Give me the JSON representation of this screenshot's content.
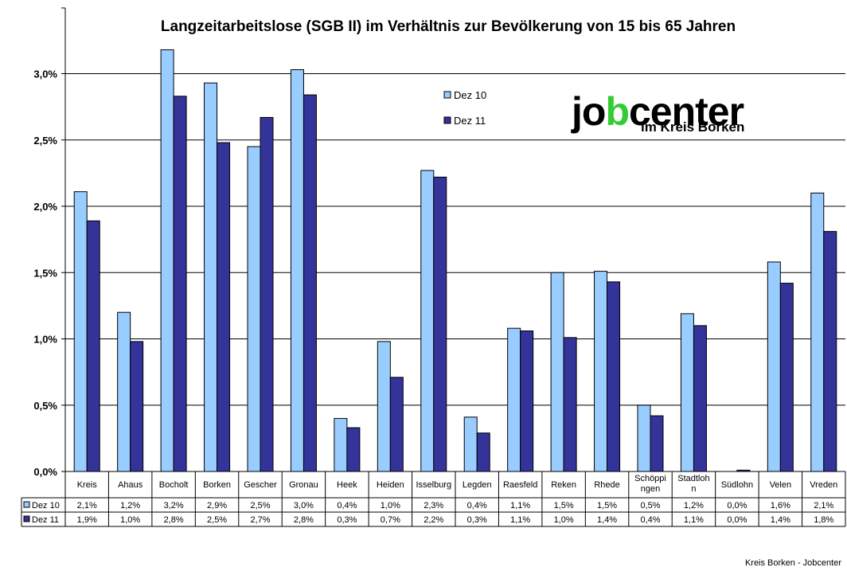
{
  "chart_data": {
    "type": "bar",
    "title": "Langzeitarbeitslose (SGB II) im Verhältnis zur Bevölkerung von 15 bis 65 Jahren",
    "categories": [
      "Kreis",
      "Ahaus",
      "Bocholt",
      "Borken",
      "Gescher",
      "Gronau",
      "Heek",
      "Heiden",
      "Isselburg",
      "Legden",
      "Raesfeld",
      "Reken",
      "Rhede",
      "Schöppingen",
      "Stadtlohn",
      "Südlohn",
      "Velen",
      "Vreden"
    ],
    "category_labels": [
      [
        "Kreis"
      ],
      [
        "Ahaus"
      ],
      [
        "Bocholt"
      ],
      [
        "Borken"
      ],
      [
        "Gescher"
      ],
      [
        "Gronau"
      ],
      [
        "Heek"
      ],
      [
        "Heiden"
      ],
      [
        "Isselburg"
      ],
      [
        "Legden"
      ],
      [
        "Raesfeld"
      ],
      [
        "Reken"
      ],
      [
        "Rhede"
      ],
      [
        "Schöppi",
        "ngen"
      ],
      [
        "Stadtloh",
        "n"
      ],
      [
        "Südlohn"
      ],
      [
        "Velen"
      ],
      [
        "Vreden"
      ]
    ],
    "series": [
      {
        "name": "Dez 10",
        "color": "#99CCFF",
        "values": [
          2.11,
          1.2,
          3.18,
          2.93,
          2.45,
          3.03,
          0.4,
          0.98,
          2.27,
          0.41,
          1.08,
          1.5,
          1.51,
          0.5,
          1.19,
          0.0,
          1.58,
          2.1
        ],
        "table_labels": [
          "2,1%",
          "1,2%",
          "3,2%",
          "2,9%",
          "2,5%",
          "3,0%",
          "0,4%",
          "1,0%",
          "2,3%",
          "0,4%",
          "1,1%",
          "1,5%",
          "1,5%",
          "0,5%",
          "1,2%",
          "0,0%",
          "1,6%",
          "2,1%"
        ]
      },
      {
        "name": "Dez 11",
        "color": "#333399",
        "values": [
          1.89,
          0.98,
          2.83,
          2.48,
          2.67,
          2.84,
          0.33,
          0.71,
          2.22,
          0.29,
          1.06,
          1.01,
          1.43,
          0.42,
          1.1,
          0.01,
          1.42,
          1.81
        ],
        "table_labels": [
          "1,9%",
          "1,0%",
          "2,8%",
          "2,5%",
          "2,7%",
          "2,8%",
          "0,3%",
          "0,7%",
          "2,2%",
          "0,3%",
          "1,1%",
          "1,0%",
          "1,4%",
          "0,4%",
          "1,1%",
          "0,0%",
          "1,4%",
          "1,8%"
        ]
      }
    ],
    "ylim": [
      0,
      3.5
    ],
    "yticks": [
      0,
      0.5,
      1.0,
      1.5,
      2.0,
      2.5,
      3.0
    ],
    "ytick_labels": [
      "0,0%",
      "0,5%",
      "1,0%",
      "1,5%",
      "2,0%",
      "2,5%",
      "3,0%"
    ],
    "ylabel": "",
    "xlabel": "",
    "grid": true,
    "legend_position": "top-center",
    "data_table": true
  },
  "logo": {
    "part1": "jo",
    "part2": "b",
    "part3": "center",
    "subtitle": "im Kreis Borken",
    "green": "#33CC33"
  },
  "footer": "Kreis Borken - Jobcenter"
}
